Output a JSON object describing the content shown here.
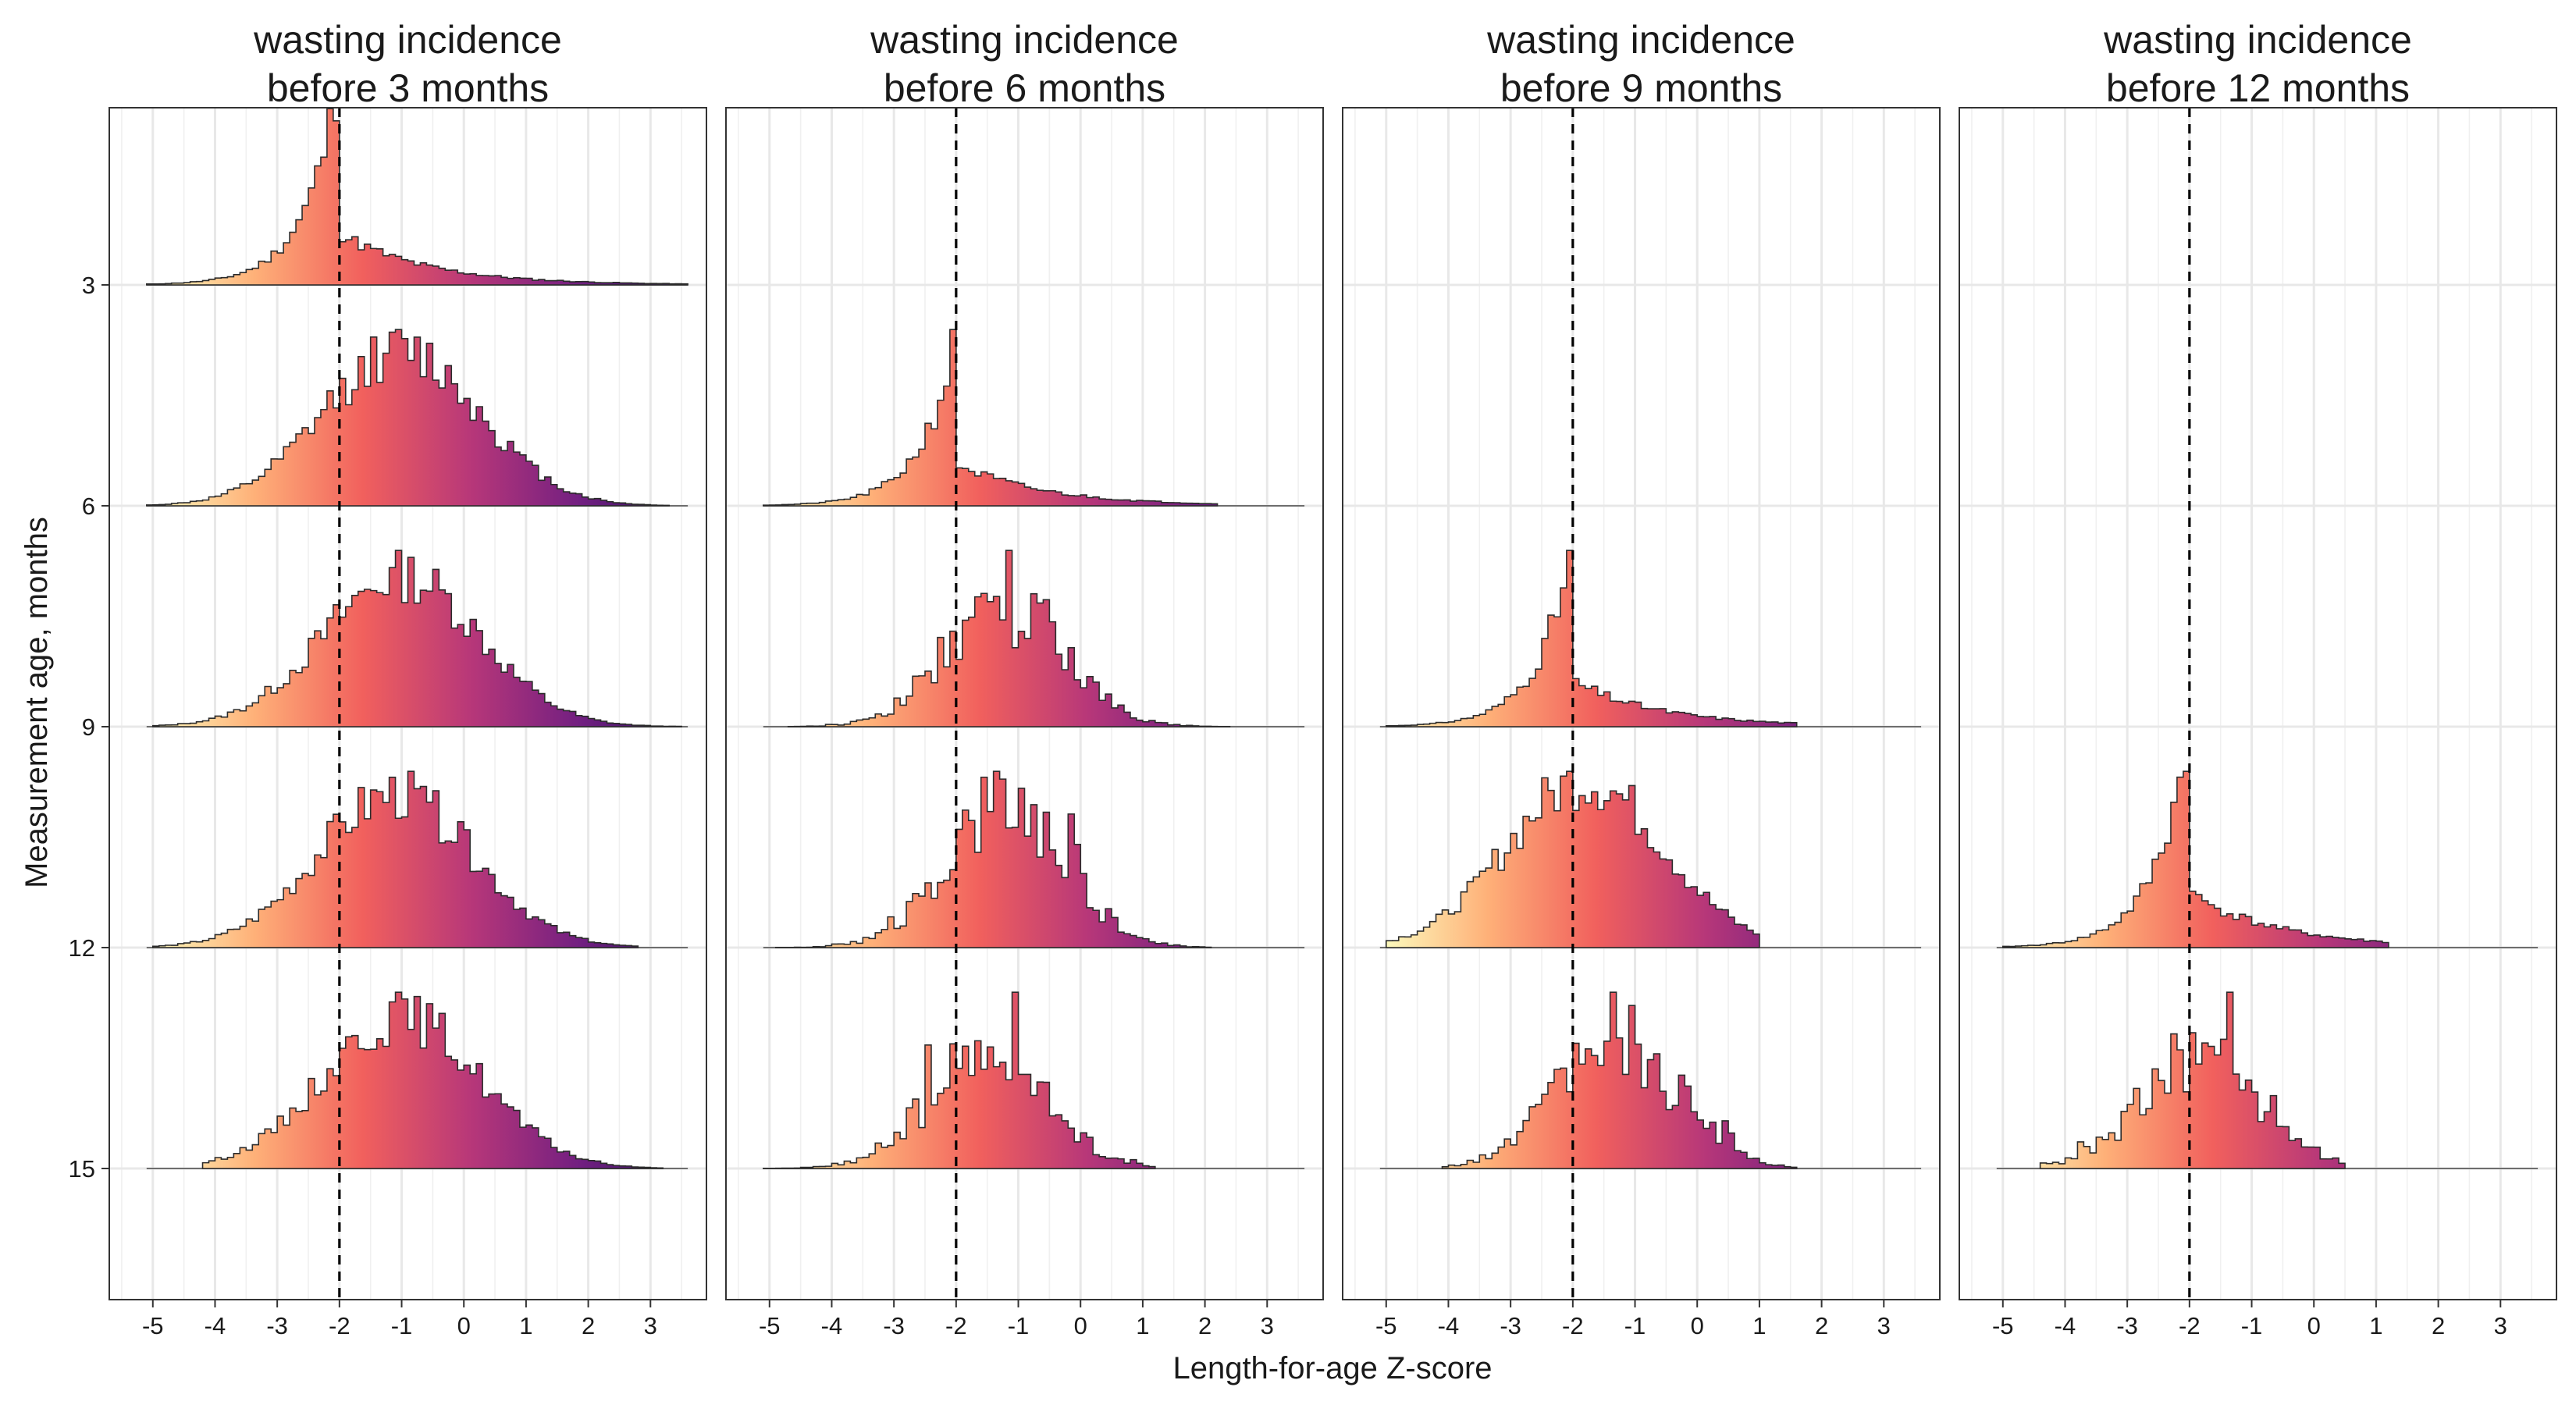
{
  "chart_data": {
    "type": "ridgeline-histogram",
    "xlabel": "Length-for-age Z-score",
    "ylabel": "Measurement age, months",
    "xlim": [
      -5.7,
      3.9
    ],
    "x_ticks": [
      -5,
      -4,
      -3,
      -2,
      -1,
      0,
      1,
      2,
      3
    ],
    "y_ticks": [
      3,
      6,
      9,
      12,
      15
    ],
    "y_tick_labels": [
      "3",
      "6",
      "9",
      "12",
      "15"
    ],
    "reference_line_x": -2,
    "bin_width": 0.1,
    "fill_palette": [
      "#fcfdbf",
      "#feb078",
      "#f1605d",
      "#b73779",
      "#721f81",
      "#2c115f"
    ],
    "grid": true,
    "panels": [
      {
        "title": "wasting incidence\nbefore 3 months",
        "series": [
          {
            "age": 3,
            "start": -5.1,
            "end": 3.6,
            "peak_x": -2.05,
            "shape": "peak_left",
            "seed": 11
          },
          {
            "age": 6,
            "start": -5.1,
            "end": 3.3,
            "peak_x": -1.0,
            "shape": "hump",
            "seed": 12
          },
          {
            "age": 9,
            "start": -5.0,
            "end": 3.5,
            "peak_x": -1.0,
            "shape": "hump",
            "seed": 13
          },
          {
            "age": 12,
            "start": -5.0,
            "end": 2.8,
            "peak_x": -1.1,
            "shape": "hump",
            "seed": 14
          },
          {
            "age": 15,
            "start": -4.2,
            "end": 3.2,
            "peak_x": -1.0,
            "shape": "hump",
            "seed": 15
          }
        ]
      },
      {
        "title": "wasting incidence\nbefore 6 months",
        "series": [
          {
            "age": 6,
            "start": -5.1,
            "end": 2.2,
            "peak_x": -2.05,
            "shape": "peak_left",
            "seed": 21
          },
          {
            "age": 9,
            "start": -4.7,
            "end": 2.4,
            "peak_x": -1.2,
            "shape": "spiky",
            "seed": 22
          },
          {
            "age": 12,
            "start": -4.9,
            "end": 2.1,
            "peak_x": -1.2,
            "shape": "spiky",
            "seed": 23
          },
          {
            "age": 15,
            "start": -5.1,
            "end": 1.2,
            "peak_x": -1.5,
            "shape": "spiky",
            "seed": 24
          }
        ]
      },
      {
        "title": "wasting incidence\nbefore 9 months",
        "series": [
          {
            "age": 9,
            "start": -5.0,
            "end": 1.6,
            "peak_x": -2.05,
            "shape": "peak_left",
            "seed": 31
          },
          {
            "age": 12,
            "start": -5.0,
            "end": 1.0,
            "peak_x": -1.8,
            "shape": "hump",
            "seed": 32
          },
          {
            "age": 15,
            "start": -4.1,
            "end": 1.6,
            "peak_x": -1.3,
            "shape": "spiky",
            "seed": 33
          }
        ]
      },
      {
        "title": "wasting incidence\nbefore 12 months",
        "series": [
          {
            "age": 12,
            "start": -5.0,
            "end": 1.2,
            "peak_x": -2.05,
            "shape": "peak_left",
            "seed": 41
          },
          {
            "age": 15,
            "start": -4.4,
            "end": 0.5,
            "peak_x": -1.8,
            "shape": "spiky",
            "seed": 42
          }
        ]
      }
    ]
  }
}
